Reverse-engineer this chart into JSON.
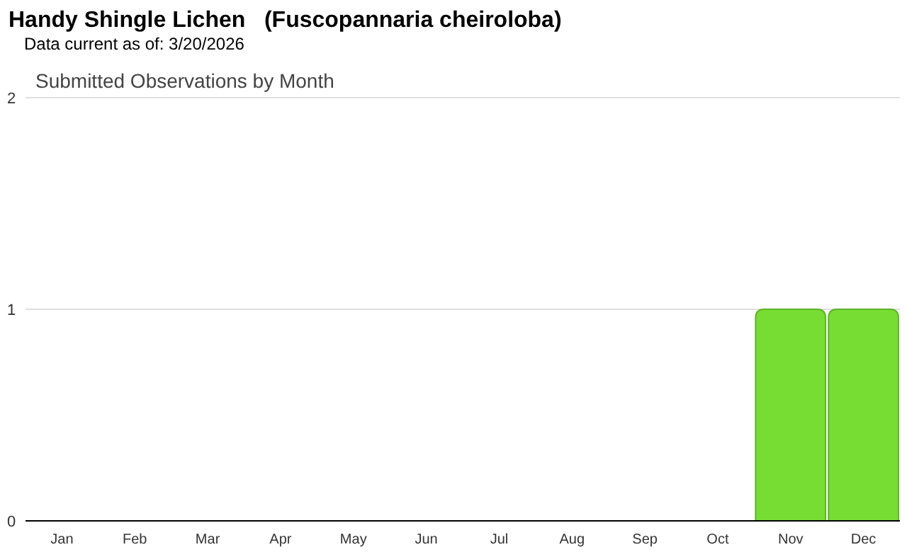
{
  "chart_data": {
    "type": "bar",
    "title": "Handy Shingle Lichen   (Fuscopannaria cheiroloba)",
    "subtitle": "Data current as of: 3/20/2026",
    "annotations": [
      "Submitted Observations by Month"
    ],
    "categories": [
      "Jan",
      "Feb",
      "Mar",
      "Apr",
      "May",
      "Jun",
      "Jul",
      "Aug",
      "Sep",
      "Oct",
      "Nov",
      "Dec"
    ],
    "values": [
      0,
      0,
      0,
      0,
      0,
      0,
      0,
      0,
      0,
      0,
      1,
      1
    ],
    "color": "#77dd33",
    "ylim": [
      0,
      2
    ],
    "yticks": [
      0,
      1,
      2
    ],
    "grid": true
  }
}
